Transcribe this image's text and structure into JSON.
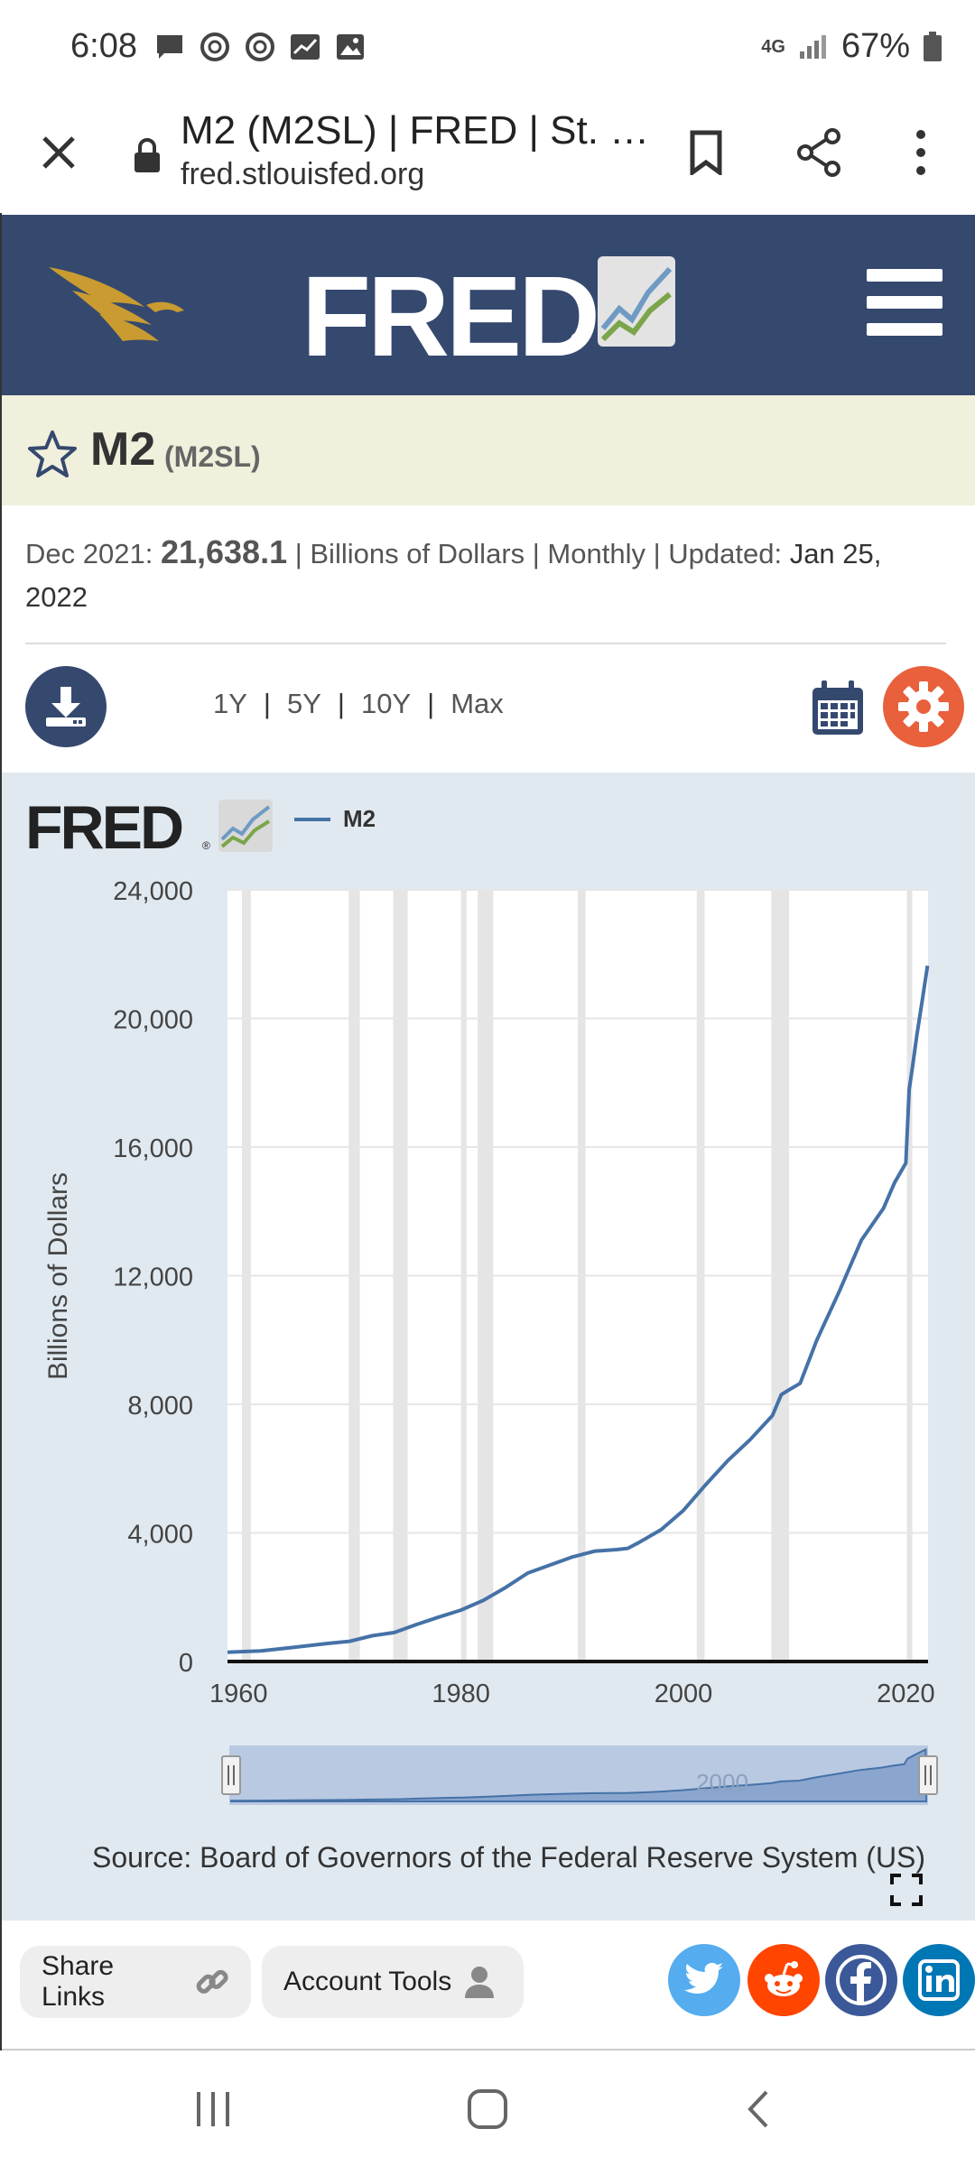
{
  "status_bar": {
    "time": "6:08",
    "network": "4G",
    "battery": "67%"
  },
  "browser": {
    "title": "M2 (M2SL) | FRED | St. …",
    "url": "fred.stlouisfed.org"
  },
  "header": {
    "logo_text": "FRED",
    "logo_reg": "®",
    "brand_color": "#35496f"
  },
  "series": {
    "name": "M2",
    "id": "(M2SL)"
  },
  "meta": {
    "date": "Dec 2021:",
    "value": "21,638.1",
    "units": "| Billions of Dollars | Monthly | Updated:",
    "updated": "Jan 25, 2022"
  },
  "toolbar": {
    "ranges": [
      "1Y",
      "5Y",
      "10Y",
      "Max"
    ],
    "separator": "|",
    "settings_color": "#e8603c"
  },
  "chart_panel": {
    "logo_text": "FRED",
    "logo_reg": "®",
    "source": "Source: Board of Governors of the Federal Reserve System (US)",
    "navigator_label": "2000"
  },
  "chart_data": {
    "type": "line",
    "ylabel": "Billions of Dollars",
    "ylim": [
      0,
      24000
    ],
    "yticks": [
      "0",
      "4,000",
      "8,000",
      "12,000",
      "16,000",
      "20,000",
      "24,000"
    ],
    "xticks": [
      "1960",
      "1980",
      "2000",
      "2020"
    ],
    "xlim": [
      1959.0,
      2022.0
    ],
    "series": [
      {
        "name": "M2",
        "color": "#4572a7",
        "x": [
          1959.0,
          1962,
          1965,
          1968,
          1970,
          1972,
          1974,
          1976,
          1978,
          1980,
          1982,
          1984,
          1986,
          1988,
          1990,
          1992,
          1994,
          1995,
          1996,
          1998,
          2000,
          2002,
          2004,
          2006,
          2008,
          2008.8,
          2009.5,
          2010.5,
          2012,
          2014,
          2016,
          2018,
          2019,
          2020.0,
          2020.3,
          2020.6,
          2021.0,
          2021.5,
          2021.95
        ],
        "y": [
          290,
          330,
          440,
          560,
          630,
          800,
          900,
          1150,
          1380,
          1600,
          1900,
          2300,
          2750,
          3000,
          3250,
          3430,
          3480,
          3520,
          3700,
          4100,
          4700,
          5500,
          6250,
          6900,
          7650,
          8300,
          8450,
          8650,
          10000,
          11500,
          13100,
          14100,
          14900,
          15500,
          17800,
          18500,
          19500,
          20600,
          21638
        ]
      }
    ],
    "recessions": [
      [
        1960.3,
        1961.1
      ],
      [
        1969.9,
        1970.9
      ],
      [
        1973.9,
        1975.2
      ],
      [
        1980.0,
        1980.5
      ],
      [
        1981.5,
        1982.9
      ],
      [
        1990.5,
        1991.2
      ],
      [
        2001.2,
        2001.9
      ],
      [
        2007.9,
        2009.5
      ],
      [
        2020.1,
        2020.3
      ]
    ]
  },
  "share_bar": {
    "share_links": "Share Links",
    "account_tools": "Account Tools"
  }
}
